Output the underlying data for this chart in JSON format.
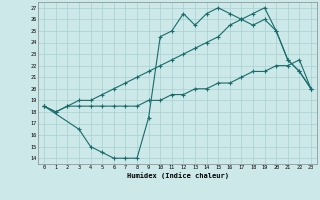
{
  "xlabel": "Humidex (Indice chaleur)",
  "background_color": "#cce8e8",
  "grid_color": "#a8d0d0",
  "line_color": "#1a6b6b",
  "xlim": [
    -0.5,
    23.5
  ],
  "ylim": [
    13.5,
    27.5
  ],
  "xticks": [
    0,
    1,
    2,
    3,
    4,
    5,
    6,
    7,
    8,
    9,
    10,
    11,
    12,
    13,
    14,
    15,
    16,
    17,
    18,
    19,
    20,
    21,
    22,
    23
  ],
  "yticks": [
    14,
    15,
    16,
    17,
    18,
    19,
    20,
    21,
    22,
    23,
    24,
    25,
    26,
    27
  ],
  "line1_x": [
    0,
    1,
    2,
    3,
    4,
    5,
    6,
    7,
    8,
    9,
    10,
    11,
    12,
    13,
    14,
    15,
    16,
    17,
    18,
    19,
    20,
    21,
    22,
    23
  ],
  "line1_y": [
    18.5,
    18.0,
    18.5,
    18.5,
    18.5,
    18.5,
    18.5,
    18.5,
    18.5,
    19.0,
    19.0,
    19.5,
    19.5,
    20.0,
    20.0,
    20.5,
    20.5,
    21.0,
    21.5,
    21.5,
    22.0,
    22.0,
    22.5,
    20.0
  ],
  "line2_x": [
    0,
    1,
    2,
    3,
    4,
    5,
    6,
    7,
    8,
    9,
    10,
    11,
    12,
    13,
    14,
    15,
    16,
    17,
    18,
    19,
    20,
    21,
    22,
    23
  ],
  "line2_y": [
    18.5,
    18.0,
    18.5,
    19.0,
    19.0,
    19.5,
    20.0,
    20.5,
    21.0,
    21.5,
    22.0,
    22.5,
    23.0,
    23.5,
    24.0,
    24.5,
    25.5,
    26.0,
    26.5,
    27.0,
    25.0,
    22.5,
    21.5,
    20.0
  ],
  "line3_x": [
    0,
    3,
    4,
    5,
    6,
    7,
    8,
    9,
    10,
    11,
    12,
    13,
    14,
    15,
    16,
    17,
    18,
    19,
    20,
    21,
    22,
    23
  ],
  "line3_y": [
    18.5,
    16.5,
    15.0,
    14.5,
    14.0,
    14.0,
    14.0,
    17.5,
    24.5,
    25.0,
    26.5,
    25.5,
    26.5,
    27.0,
    26.5,
    26.0,
    25.5,
    26.0,
    25.0,
    22.5,
    21.5,
    20.0
  ]
}
